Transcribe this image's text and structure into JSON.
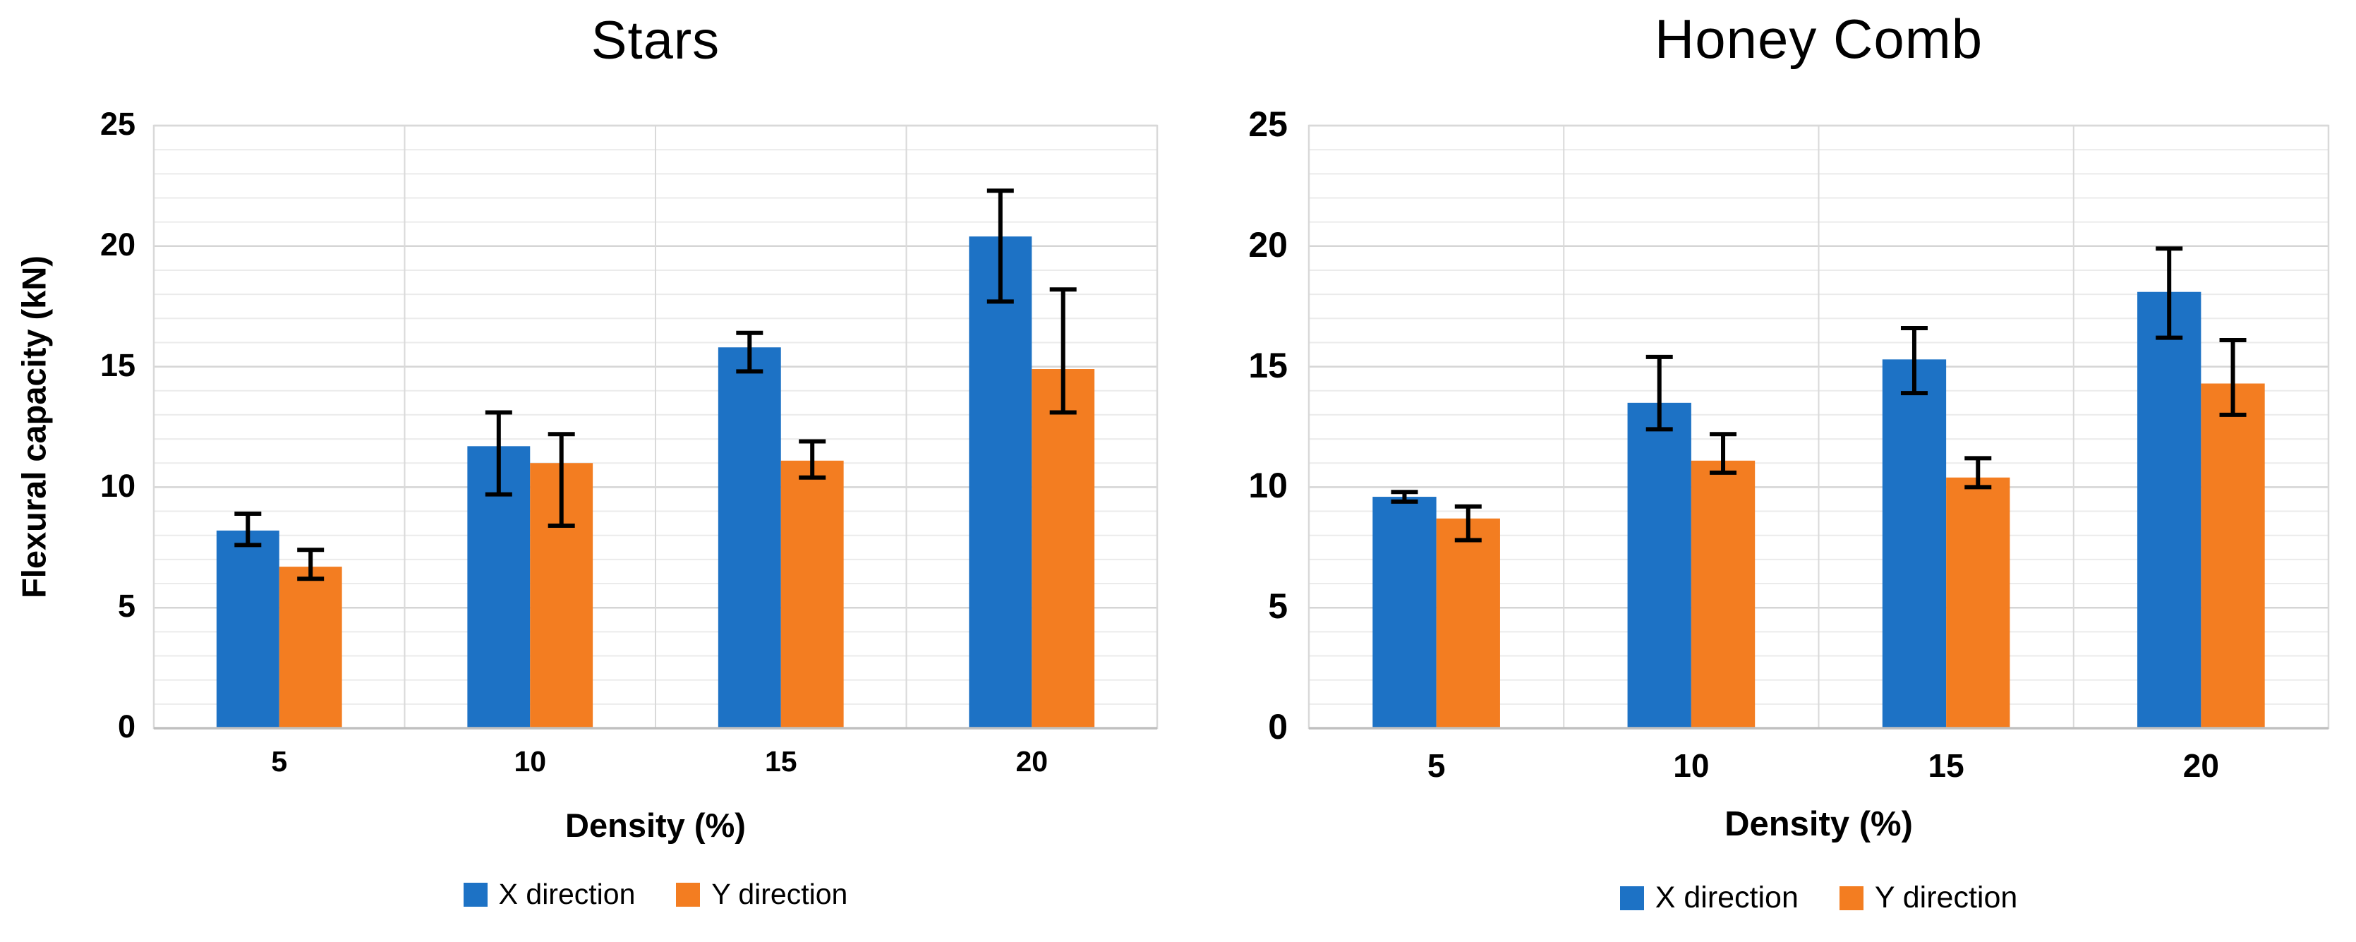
{
  "figure": {
    "background": "#ffffff"
  },
  "colors": {
    "x_direction": "#1D72C5",
    "y_direction": "#F37D21",
    "error_bar": "#000000",
    "grid_minor": "#EBEBEB",
    "grid_major": "#D5D5D5",
    "plot_border": "#D9D9D9",
    "axis_line": "#C0C0C0"
  },
  "chart_data": [
    {
      "type": "bar",
      "title": "Stars",
      "xlabel": "Density (%)",
      "ylabel": "Flexural capacity (kN)",
      "categories": [
        "5",
        "10",
        "15",
        "20"
      ],
      "ylim": [
        0,
        25
      ],
      "yticks": [
        0,
        5,
        10,
        15,
        20,
        25
      ],
      "grid": {
        "minor_step": 1,
        "major_step": 5
      },
      "legend_position": "bottom",
      "series": [
        {
          "name": "X direction",
          "color": "#1D72C5",
          "values": [
            8.2,
            11.7,
            15.8,
            20.4
          ],
          "err_lo": [
            7.6,
            9.7,
            14.8,
            17.7
          ],
          "err_hi": [
            8.9,
            13.1,
            16.4,
            22.3
          ]
        },
        {
          "name": "Y direction",
          "color": "#F37D21",
          "values": [
            6.7,
            11.0,
            11.1,
            14.9
          ],
          "err_lo": [
            6.2,
            8.4,
            10.4,
            13.1
          ],
          "err_hi": [
            7.4,
            12.2,
            11.9,
            18.2
          ]
        }
      ]
    },
    {
      "type": "bar",
      "title": "Honey Comb",
      "xlabel": "Density (%)",
      "ylabel": "",
      "categories": [
        "5",
        "10",
        "15",
        "20"
      ],
      "ylim": [
        0,
        25
      ],
      "yticks": [
        0,
        5,
        10,
        15,
        20,
        25
      ],
      "grid": {
        "minor_step": 1,
        "major_step": 5
      },
      "legend_position": "bottom",
      "series": [
        {
          "name": "X direction",
          "color": "#1D72C5",
          "values": [
            9.6,
            13.5,
            15.3,
            18.1
          ],
          "err_lo": [
            9.4,
            12.4,
            13.9,
            16.2
          ],
          "err_hi": [
            9.8,
            15.4,
            16.6,
            19.9
          ]
        },
        {
          "name": "Y direction",
          "color": "#F37D21",
          "values": [
            8.7,
            11.1,
            10.4,
            14.3
          ],
          "err_lo": [
            7.8,
            10.6,
            10.0,
            13.0
          ],
          "err_hi": [
            9.2,
            12.2,
            11.2,
            16.1
          ]
        }
      ]
    }
  ]
}
